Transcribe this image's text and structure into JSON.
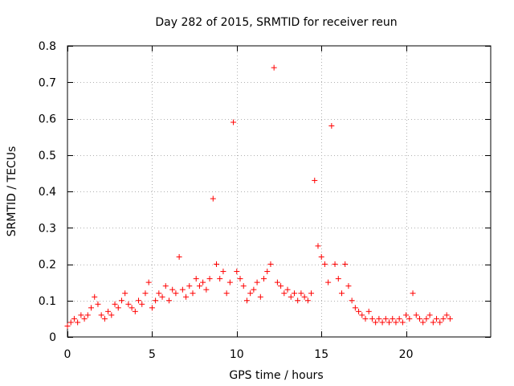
{
  "chart_data": {
    "type": "scatter",
    "title": "Day 282 of 2015, SRMTID for receiver reun",
    "xlabel": "GPS time / hours",
    "ylabel": "SRMTID / TECUs",
    "xlim": [
      0,
      25
    ],
    "ylim": [
      0,
      0.8
    ],
    "xticks": [
      0,
      5,
      10,
      15,
      20
    ],
    "xtick_labels": [
      "0",
      "5",
      "10",
      "15",
      "20"
    ],
    "yticks": [
      0,
      0.1,
      0.2,
      0.3,
      0.4,
      0.5,
      0.6,
      0.7,
      0.8
    ],
    "ytick_labels": [
      "0",
      "0.1",
      "0.2",
      "0.3",
      "0.4",
      "0.5",
      "0.6",
      "0.7",
      "0.8"
    ],
    "grid": true,
    "marker": "+",
    "marker_color": "#ff0000",
    "series": [
      {
        "name": "SRMTID",
        "x": [
          0.0,
          0.2,
          0.4,
          0.6,
          0.8,
          1.0,
          1.2,
          1.4,
          1.6,
          1.8,
          2.0,
          2.2,
          2.4,
          2.6,
          2.8,
          3.0,
          3.2,
          3.4,
          3.6,
          3.8,
          4.0,
          4.2,
          4.4,
          4.6,
          4.8,
          5.0,
          5.2,
          5.4,
          5.6,
          5.8,
          6.0,
          6.2,
          6.4,
          6.6,
          6.8,
          7.0,
          7.2,
          7.4,
          7.6,
          7.8,
          8.0,
          8.2,
          8.4,
          8.6,
          8.8,
          9.0,
          9.2,
          9.4,
          9.6,
          9.8,
          10.0,
          10.2,
          10.4,
          10.6,
          10.8,
          11.0,
          11.2,
          11.4,
          11.6,
          11.8,
          12.0,
          12.2,
          12.4,
          12.6,
          12.8,
          13.0,
          13.2,
          13.4,
          13.6,
          13.8,
          14.0,
          14.2,
          14.4,
          14.6,
          14.8,
          15.0,
          15.2,
          15.4,
          15.6,
          15.8,
          16.0,
          16.2,
          16.4,
          16.6,
          16.8,
          17.0,
          17.2,
          17.4,
          17.6,
          17.8,
          18.0,
          18.2,
          18.4,
          18.6,
          18.8,
          19.0,
          19.2,
          19.4,
          19.6,
          19.8,
          20.0,
          20.2,
          20.4,
          20.6,
          20.8,
          21.0,
          21.2,
          21.4,
          21.6,
          21.8,
          22.0,
          22.2,
          22.4,
          22.6
        ],
        "y": [
          0.03,
          0.04,
          0.05,
          0.04,
          0.06,
          0.05,
          0.06,
          0.08,
          0.11,
          0.09,
          0.06,
          0.05,
          0.07,
          0.06,
          0.09,
          0.08,
          0.1,
          0.12,
          0.09,
          0.08,
          0.07,
          0.1,
          0.09,
          0.12,
          0.15,
          0.08,
          0.1,
          0.12,
          0.11,
          0.14,
          0.1,
          0.13,
          0.12,
          0.22,
          0.13,
          0.11,
          0.14,
          0.12,
          0.16,
          0.14,
          0.15,
          0.13,
          0.16,
          0.38,
          0.2,
          0.16,
          0.18,
          0.12,
          0.15,
          0.59,
          0.18,
          0.16,
          0.14,
          0.1,
          0.12,
          0.13,
          0.15,
          0.11,
          0.16,
          0.18,
          0.2,
          0.74,
          0.15,
          0.14,
          0.12,
          0.13,
          0.11,
          0.12,
          0.1,
          0.12,
          0.11,
          0.1,
          0.12,
          0.43,
          0.25,
          0.22,
          0.2,
          0.15,
          0.58,
          0.2,
          0.16,
          0.12,
          0.2,
          0.14,
          0.1,
          0.08,
          0.07,
          0.06,
          0.05,
          0.07,
          0.05,
          0.04,
          0.05,
          0.04,
          0.05,
          0.04,
          0.05,
          0.04,
          0.05,
          0.04,
          0.06,
          0.05,
          0.12,
          0.06,
          0.05,
          0.04,
          0.05,
          0.06,
          0.04,
          0.05,
          0.04,
          0.05,
          0.06,
          0.05
        ]
      }
    ]
  }
}
